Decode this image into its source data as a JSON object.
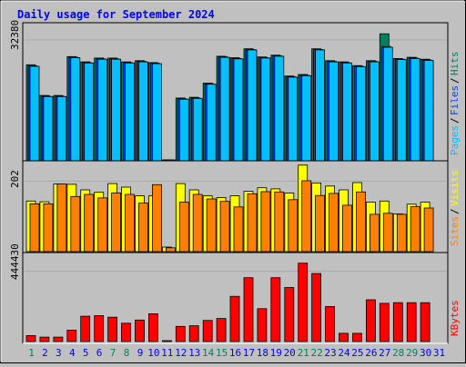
{
  "chart_data": {
    "type": "bar",
    "title": "Daily usage for September 2024",
    "colors": {
      "background": "#c0c0c0",
      "title": "#0000ff",
      "hits": "#00805c",
      "files": "#0040ff",
      "pages": "#00c0ff",
      "visits": "#ffff00",
      "sites": "#ff8000",
      "kbytes": "#ff0000",
      "weekday_label": "#0000ff",
      "weekend_label": "#00805c"
    },
    "x": {
      "labels": [
        "1",
        "2",
        "3",
        "4",
        "5",
        "6",
        "7",
        "8",
        "9",
        "10",
        "11",
        "12",
        "13",
        "14",
        "15",
        "16",
        "17",
        "18",
        "19",
        "20",
        "21",
        "22",
        "23",
        "24",
        "25",
        "26",
        "27",
        "28",
        "29",
        "30",
        "31"
      ],
      "weekend_days": [
        1,
        7,
        8,
        14,
        15,
        21,
        22,
        28,
        29
      ]
    },
    "panels": [
      {
        "name": "hits-files-pages",
        "scale_label": "32380",
        "legend": [
          {
            "text": "Hits",
            "color": "#00805c"
          },
          {
            "text": "Files",
            "color": "#0040ff"
          },
          {
            "text": "Pages",
            "color": "#00c0ff"
          }
        ],
        "ymax": 36000,
        "series": [
          {
            "name": "Hits",
            "values": [
              25700,
              17500,
              17500,
              27900,
              26500,
              27500,
              27500,
              26500,
              26800,
              26300,
              0,
              16800,
              17000,
              20800,
              28000,
              27600,
              30000,
              27800,
              28300,
              22700,
              23100,
              30000,
              26800,
              26500,
              25500,
              26800,
              34000,
              27400,
              27700,
              27200,
              null
            ]
          },
          {
            "name": "Files",
            "values": [
              25400,
              17300,
              17300,
              27700,
              26300,
              27300,
              27300,
              26300,
              26600,
              26100,
              0,
              16600,
              16800,
              20600,
              27800,
              27400,
              29800,
              27600,
              28100,
              22500,
              22900,
              29800,
              26600,
              26300,
              25300,
              26600,
              30600,
              27200,
              27500,
              27000,
              null
            ]
          },
          {
            "name": "Pages",
            "values": [
              25300,
              17200,
              17200,
              27600,
              26200,
              27200,
              27200,
              26200,
              26500,
              26000,
              0,
              16500,
              16700,
              20500,
              27700,
              27300,
              29700,
              27500,
              28000,
              22400,
              22800,
              29700,
              26500,
              26200,
              25200,
              26500,
              30400,
              27100,
              27400,
              26900,
              null
            ]
          }
        ]
      },
      {
        "name": "visits-sites",
        "scale_label": "202",
        "legend": [
          {
            "text": "Visits",
            "color": "#ffff00"
          },
          {
            "text": "Sites",
            "color": "#ff8000"
          }
        ],
        "ymax": 250,
        "series": [
          {
            "name": "Visits",
            "values": [
              145,
              143,
              194,
              193,
              177,
              170,
              195,
              185,
              160,
              160,
              13,
              195,
              177,
              160,
              155,
              160,
              173,
              183,
              180,
              168,
              248,
              197,
              188,
              177,
              198,
              142,
              145,
              108,
              136,
              142,
              null
            ]
          },
          {
            "name": "Sites",
            "values": [
              137,
              137,
              194,
              158,
              164,
              154,
              168,
              164,
              139,
              192,
              11,
              142,
              164,
              151,
              144,
              128,
              166,
              172,
              171,
              149,
              203,
              161,
              167,
              133,
              171,
              107,
              110,
              107,
              129,
              125,
              null
            ]
          }
        ]
      },
      {
        "name": "kbytes",
        "scale_label": "444430",
        "legend": [
          {
            "text": "KBytes",
            "color": "#ff0000"
          }
        ],
        "ymax": 540000,
        "series": [
          {
            "name": "KBytes",
            "values": [
              38000,
              28000,
              28000,
              72000,
              160000,
              164000,
              154000,
              116000,
              136000,
              176000,
              0,
              96000,
              100000,
              134000,
              146000,
              286000,
              404000,
              208000,
              404000,
              342000,
              496000,
              430000,
              222000,
              52000,
              52000,
              264000,
              242000,
              246000,
              246000,
              246000,
              null
            ]
          }
        ]
      }
    ]
  }
}
